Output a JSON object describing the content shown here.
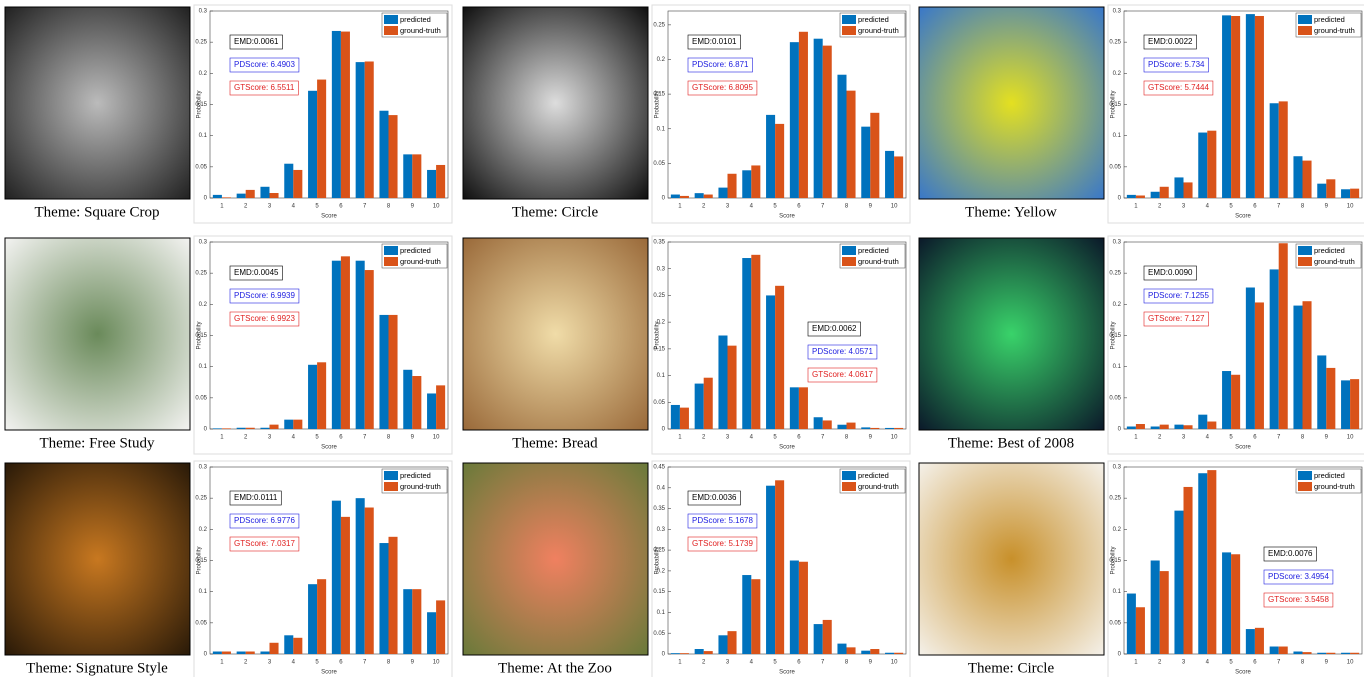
{
  "chart_data": [
    {
      "type": "bar",
      "caption": "Theme: Square Crop",
      "xlabel": "Score",
      "ylabel": "Probability",
      "annotation_position": "upper-left",
      "annotations": [
        "EMD:0.0061",
        "PDScore: 6.4903",
        "GTScore: 6.5511"
      ],
      "categories": [
        "1",
        "2",
        "3",
        "4",
        "5",
        "6",
        "7",
        "8",
        "9",
        "10"
      ],
      "series": [
        {
          "name": "predicted",
          "color": "#0072bd",
          "values": [
            0.005,
            0.007,
            0.018,
            0.055,
            0.172,
            0.268,
            0.218,
            0.14,
            0.07,
            0.045
          ]
        },
        {
          "name": "ground-truth",
          "color": "#d95319",
          "values": [
            0.001,
            0.013,
            0.008,
            0.045,
            0.19,
            0.267,
            0.219,
            0.133,
            0.07,
            0.053
          ]
        }
      ],
      "ylim": [
        0,
        0.3
      ],
      "yticks": [
        0,
        0.05,
        0.1,
        0.15,
        0.2,
        0.25,
        0.3
      ]
    },
    {
      "type": "bar",
      "caption": "Theme: Circle",
      "xlabel": "Score",
      "ylabel": "Probability",
      "annotation_position": "upper-left",
      "annotations": [
        "EMD:0.0101",
        "PDScore: 6.871",
        "GTScore: 6.8095"
      ],
      "categories": [
        "1",
        "2",
        "3",
        "4",
        "5",
        "6",
        "7",
        "8",
        "9",
        "10"
      ],
      "series": [
        {
          "name": "predicted",
          "color": "#0072bd",
          "values": [
            0.005,
            0.007,
            0.015,
            0.04,
            0.12,
            0.225,
            0.23,
            0.178,
            0.103,
            0.068
          ]
        },
        {
          "name": "ground-truth",
          "color": "#d95319",
          "values": [
            0.003,
            0.005,
            0.035,
            0.047,
            0.107,
            0.24,
            0.22,
            0.155,
            0.123,
            0.06
          ]
        }
      ],
      "ylim": [
        0,
        0.27
      ],
      "yticks": [
        0,
        0.05,
        0.1,
        0.15,
        0.2,
        0.25
      ]
    },
    {
      "type": "bar",
      "caption": "Theme: Yellow",
      "xlabel": "Score",
      "ylabel": "Probability",
      "annotation_position": "upper-left",
      "annotations": [
        "EMD:0.0022",
        "PDScore: 5.734",
        "GTScore: 5.7444"
      ],
      "categories": [
        "1",
        "2",
        "3",
        "4",
        "5",
        "6",
        "7",
        "8",
        "9",
        "10"
      ],
      "series": [
        {
          "name": "predicted",
          "color": "#0072bd",
          "values": [
            0.005,
            0.01,
            0.033,
            0.105,
            0.293,
            0.295,
            0.152,
            0.067,
            0.023,
            0.014
          ]
        },
        {
          "name": "ground-truth",
          "color": "#d95319",
          "values": [
            0.004,
            0.018,
            0.025,
            0.108,
            0.292,
            0.292,
            0.155,
            0.06,
            0.03,
            0.015
          ]
        }
      ],
      "ylim": [
        0,
        0.3
      ],
      "yticks": [
        0,
        0.05,
        0.1,
        0.15,
        0.2,
        0.25,
        0.3
      ]
    },
    {
      "type": "bar",
      "caption": "Theme: Free Study",
      "xlabel": "Score",
      "ylabel": "Probability",
      "annotation_position": "upper-left",
      "annotations": [
        "EMD:0.0045",
        "PDScore: 6.9939",
        "GTScore: 6.9923"
      ],
      "categories": [
        "1",
        "2",
        "3",
        "4",
        "5",
        "6",
        "7",
        "8",
        "9",
        "10"
      ],
      "series": [
        {
          "name": "predicted",
          "color": "#0072bd",
          "values": [
            0.001,
            0.002,
            0.002,
            0.015,
            0.103,
            0.27,
            0.27,
            0.183,
            0.095,
            0.057
          ]
        },
        {
          "name": "ground-truth",
          "color": "#d95319",
          "values": [
            0.001,
            0.002,
            0.007,
            0.015,
            0.107,
            0.277,
            0.255,
            0.183,
            0.085,
            0.07
          ]
        }
      ],
      "ylim": [
        0,
        0.3
      ],
      "yticks": [
        0,
        0.05,
        0.1,
        0.15,
        0.2,
        0.25,
        0.3
      ]
    },
    {
      "type": "bar",
      "caption": "Theme: Bread",
      "xlabel": "Score",
      "ylabel": "Probability",
      "annotation_position": "center-right",
      "annotations": [
        "EMD:0.0062",
        "PDScore: 4.0571",
        "GTScore: 4.0617"
      ],
      "categories": [
        "1",
        "2",
        "3",
        "4",
        "5",
        "6",
        "7",
        "8",
        "9",
        "10"
      ],
      "series": [
        {
          "name": "predicted",
          "color": "#0072bd",
          "values": [
            0.045,
            0.085,
            0.175,
            0.32,
            0.25,
            0.078,
            0.022,
            0.008,
            0.003,
            0.002
          ]
        },
        {
          "name": "ground-truth",
          "color": "#d95319",
          "values": [
            0.04,
            0.096,
            0.156,
            0.326,
            0.268,
            0.078,
            0.016,
            0.012,
            0.002,
            0.002
          ]
        }
      ],
      "ylim": [
        0,
        0.35
      ],
      "yticks": [
        0,
        0.05,
        0.1,
        0.15,
        0.2,
        0.25,
        0.3,
        0.35
      ]
    },
    {
      "type": "bar",
      "caption": "Theme: Best of 2008",
      "xlabel": "Score",
      "ylabel": "Probability",
      "annotation_position": "upper-left",
      "annotations": [
        "EMD:0.0090",
        "PDScore: 7.1255",
        "GTScore: 7.127"
      ],
      "categories": [
        "1",
        "2",
        "3",
        "4",
        "5",
        "6",
        "7",
        "8",
        "9",
        "10"
      ],
      "series": [
        {
          "name": "predicted",
          "color": "#0072bd",
          "values": [
            0.004,
            0.004,
            0.007,
            0.023,
            0.093,
            0.227,
            0.256,
            0.198,
            0.118,
            0.078
          ]
        },
        {
          "name": "ground-truth",
          "color": "#d95319",
          "values": [
            0.008,
            0.007,
            0.006,
            0.012,
            0.087,
            0.203,
            0.298,
            0.205,
            0.098,
            0.08
          ]
        }
      ],
      "ylim": [
        0,
        0.3
      ],
      "yticks": [
        0,
        0.05,
        0.1,
        0.15,
        0.2,
        0.25,
        0.3
      ]
    },
    {
      "type": "bar",
      "caption": "Theme: Signature Style",
      "xlabel": "Score",
      "ylabel": "Probability",
      "annotation_position": "upper-left",
      "annotations": [
        "EMD:0.0111",
        "PDScore: 6.9776",
        "GTScore: 7.0317"
      ],
      "categories": [
        "1",
        "2",
        "3",
        "4",
        "5",
        "6",
        "7",
        "8",
        "9",
        "10"
      ],
      "series": [
        {
          "name": "predicted",
          "color": "#0072bd",
          "values": [
            0.004,
            0.004,
            0.004,
            0.03,
            0.112,
            0.246,
            0.25,
            0.178,
            0.104,
            0.067
          ]
        },
        {
          "name": "ground-truth",
          "color": "#d95319",
          "values": [
            0.004,
            0.004,
            0.018,
            0.026,
            0.12,
            0.22,
            0.235,
            0.188,
            0.104,
            0.086
          ]
        }
      ],
      "ylim": [
        0,
        0.3
      ],
      "yticks": [
        0,
        0.05,
        0.1,
        0.15,
        0.2,
        0.25,
        0.3
      ]
    },
    {
      "type": "bar",
      "caption": "Theme: At the Zoo",
      "xlabel": "Score",
      "ylabel": "Probability",
      "annotation_position": "upper-left",
      "annotations": [
        "EMD:0.0036",
        "PDScore: 5.1678",
        "GTScore: 5.1739"
      ],
      "categories": [
        "1",
        "2",
        "3",
        "4",
        "5",
        "6",
        "7",
        "8",
        "9",
        "10"
      ],
      "series": [
        {
          "name": "predicted",
          "color": "#0072bd",
          "values": [
            0.002,
            0.012,
            0.045,
            0.19,
            0.405,
            0.225,
            0.072,
            0.025,
            0.008,
            0.003
          ]
        },
        {
          "name": "ground-truth",
          "color": "#d95319",
          "values": [
            0.002,
            0.007,
            0.055,
            0.18,
            0.418,
            0.222,
            0.082,
            0.016,
            0.012,
            0.003
          ]
        }
      ],
      "ylim": [
        0,
        0.45
      ],
      "yticks": [
        0,
        0.05,
        0.1,
        0.15,
        0.2,
        0.25,
        0.3,
        0.35,
        0.4,
        0.45
      ]
    },
    {
      "type": "bar",
      "caption": "Theme: Circle",
      "xlabel": "Score",
      "ylabel": "Probability",
      "annotation_position": "center-right",
      "annotations": [
        "EMD:0.0076",
        "PDScore: 3.4954",
        "GTScore: 3.5458"
      ],
      "categories": [
        "1",
        "2",
        "3",
        "4",
        "5",
        "6",
        "7",
        "8",
        "9",
        "10"
      ],
      "series": [
        {
          "name": "predicted",
          "color": "#0072bd",
          "values": [
            0.097,
            0.15,
            0.23,
            0.29,
            0.163,
            0.04,
            0.012,
            0.004,
            0.002,
            0.002
          ]
        },
        {
          "name": "ground-truth",
          "color": "#d95319",
          "values": [
            0.075,
            0.133,
            0.268,
            0.295,
            0.16,
            0.042,
            0.012,
            0.003,
            0.002,
            0.002
          ]
        }
      ],
      "ylim": [
        0,
        0.3
      ],
      "yticks": [
        0,
        0.05,
        0.1,
        0.15,
        0.2,
        0.25,
        0.3
      ]
    }
  ]
}
